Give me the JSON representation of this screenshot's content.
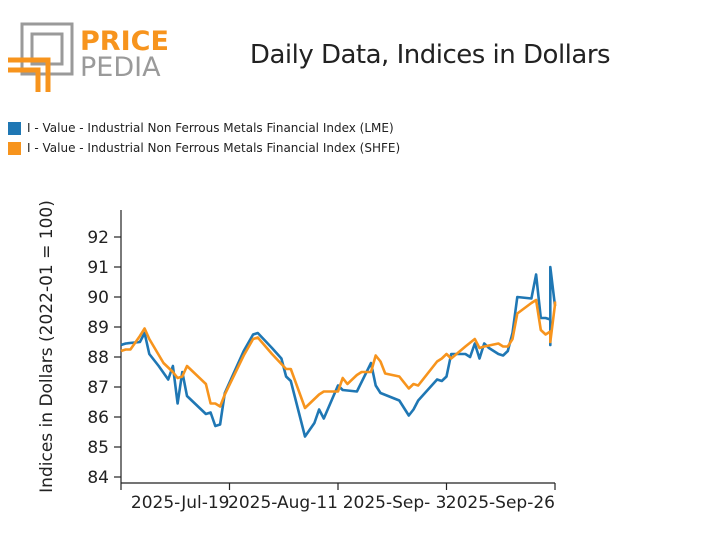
{
  "brand": {
    "price": "PRICE",
    "pedia": "PEDIA",
    "colors": {
      "orange": "#f7941d",
      "gray": "#9a9a9a"
    }
  },
  "chart_data": {
    "type": "line",
    "title": "Daily Data, Indices in Dollars",
    "xlabel": "",
    "ylabel": "Indices in Dollars (2022-01 = 100)",
    "ylim": [
      83.8,
      92.9
    ],
    "yticks": [
      84,
      85,
      86,
      87,
      88,
      89,
      90,
      91,
      92
    ],
    "xlim": [
      "2025-06-26",
      "2025-09-26"
    ],
    "xticks": [
      "2025-Jul-19",
      "2025-Aug-11",
      "2025-Sep- 3",
      "2025-Sep-26"
    ],
    "legend_placement": "top-left",
    "grid": false,
    "series": [
      {
        "name": "I - Value - Industrial Non Ferrous Metals Financial Index (LME)",
        "color": "#1f77b4",
        "points": [
          [
            "2025-06-26",
            88.4
          ],
          [
            "2025-06-27",
            88.45
          ],
          [
            "2025-06-30",
            88.5
          ],
          [
            "2025-07-01",
            88.8
          ],
          [
            "2025-07-02",
            88.1
          ],
          [
            "2025-07-04",
            87.7
          ],
          [
            "2025-07-06",
            87.25
          ],
          [
            "2025-07-07",
            87.7
          ],
          [
            "2025-07-08",
            86.45
          ],
          [
            "2025-07-09",
            87.5
          ],
          [
            "2025-07-10",
            86.7
          ],
          [
            "2025-07-14",
            86.1
          ],
          [
            "2025-07-15",
            86.15
          ],
          [
            "2025-07-16",
            85.7
          ],
          [
            "2025-07-17",
            85.75
          ],
          [
            "2025-07-18",
            86.8
          ],
          [
            "2025-07-22",
            88.2
          ],
          [
            "2025-07-24",
            88.75
          ],
          [
            "2025-07-25",
            88.8
          ],
          [
            "2025-07-28",
            88.3
          ],
          [
            "2025-07-30",
            87.95
          ],
          [
            "2025-07-31",
            87.35
          ],
          [
            "2025-08-01",
            87.2
          ],
          [
            "2025-08-04",
            85.35
          ],
          [
            "2025-08-06",
            85.8
          ],
          [
            "2025-08-07",
            86.25
          ],
          [
            "2025-08-08",
            85.95
          ],
          [
            "2025-08-11",
            87.05
          ],
          [
            "2025-08-12",
            86.9
          ],
          [
            "2025-08-15",
            86.85
          ],
          [
            "2025-08-18",
            87.8
          ],
          [
            "2025-08-19",
            87.05
          ],
          [
            "2025-08-20",
            86.8
          ],
          [
            "2025-08-24",
            86.55
          ],
          [
            "2025-08-26",
            86.05
          ],
          [
            "2025-08-27",
            86.25
          ],
          [
            "2025-08-28",
            86.55
          ],
          [
            "2025-09-01",
            87.25
          ],
          [
            "2025-09-02",
            87.2
          ],
          [
            "2025-09-03",
            87.35
          ],
          [
            "2025-09-04",
            88.1
          ],
          [
            "2025-09-07",
            88.1
          ],
          [
            "2025-09-08",
            88.0
          ],
          [
            "2025-09-09",
            88.45
          ],
          [
            "2025-09-10",
            87.95
          ],
          [
            "2025-09-11",
            88.45
          ],
          [
            "2025-09-12",
            88.3
          ],
          [
            "2025-09-14",
            88.1
          ],
          [
            "2025-09-15",
            88.05
          ],
          [
            "2025-09-16",
            88.2
          ],
          [
            "2025-09-17",
            88.8
          ],
          [
            "2025-09-18",
            90.0
          ],
          [
            "2025-09-21",
            89.95
          ],
          [
            "2025-09-22",
            90.75
          ],
          [
            "2025-09-23",
            89.3
          ],
          [
            "2025-09-24",
            89.3
          ],
          [
            "2025-09-25",
            89.25
          ],
          [
            "2025-09-25",
            88.4
          ],
          [
            "2025-09-25",
            91.0
          ],
          [
            "2025-09-26",
            89.7
          ]
        ]
      },
      {
        "name": "I - Value - Industrial Non Ferrous Metals Financial Index (SHFE)",
        "color": "#f7941d",
        "points": [
          [
            "2025-06-26",
            88.2
          ],
          [
            "2025-06-27",
            88.25
          ],
          [
            "2025-06-28",
            88.25
          ],
          [
            "2025-06-30",
            88.7
          ],
          [
            "2025-07-01",
            88.95
          ],
          [
            "2025-07-02",
            88.6
          ],
          [
            "2025-07-05",
            87.8
          ],
          [
            "2025-07-07",
            87.5
          ],
          [
            "2025-07-08",
            87.3
          ],
          [
            "2025-07-09",
            87.35
          ],
          [
            "2025-07-10",
            87.7
          ],
          [
            "2025-07-14",
            87.1
          ],
          [
            "2025-07-15",
            86.45
          ],
          [
            "2025-07-16",
            86.45
          ],
          [
            "2025-07-17",
            86.35
          ],
          [
            "2025-07-18",
            86.75
          ],
          [
            "2025-07-22",
            88.05
          ],
          [
            "2025-07-24",
            88.6
          ],
          [
            "2025-07-25",
            88.65
          ],
          [
            "2025-07-28",
            88.1
          ],
          [
            "2025-07-31",
            87.6
          ],
          [
            "2025-08-01",
            87.6
          ],
          [
            "2025-08-04",
            86.3
          ],
          [
            "2025-08-07",
            86.75
          ],
          [
            "2025-08-08",
            86.85
          ],
          [
            "2025-08-11",
            86.85
          ],
          [
            "2025-08-12",
            87.3
          ],
          [
            "2025-08-13",
            87.1
          ],
          [
            "2025-08-15",
            87.4
          ],
          [
            "2025-08-16",
            87.5
          ],
          [
            "2025-08-18",
            87.5
          ],
          [
            "2025-08-19",
            88.05
          ],
          [
            "2025-08-20",
            87.85
          ],
          [
            "2025-08-21",
            87.45
          ],
          [
            "2025-08-24",
            87.35
          ],
          [
            "2025-08-26",
            86.95
          ],
          [
            "2025-08-27",
            87.1
          ],
          [
            "2025-08-28",
            87.05
          ],
          [
            "2025-09-01",
            87.85
          ],
          [
            "2025-09-02",
            87.95
          ],
          [
            "2025-09-03",
            88.1
          ],
          [
            "2025-09-04",
            87.95
          ],
          [
            "2025-09-07",
            88.35
          ],
          [
            "2025-09-09",
            88.6
          ],
          [
            "2025-09-10",
            88.3
          ],
          [
            "2025-09-11",
            88.35
          ],
          [
            "2025-09-14",
            88.45
          ],
          [
            "2025-09-15",
            88.35
          ],
          [
            "2025-09-16",
            88.35
          ],
          [
            "2025-09-17",
            88.6
          ],
          [
            "2025-09-18",
            89.45
          ],
          [
            "2025-09-21",
            89.8
          ],
          [
            "2025-09-22",
            89.9
          ],
          [
            "2025-09-23",
            88.9
          ],
          [
            "2025-09-24",
            88.75
          ],
          [
            "2025-09-25",
            88.85
          ],
          [
            "2025-09-25",
            88.65
          ],
          [
            "2025-09-25",
            88.5
          ],
          [
            "2025-09-26",
            89.75
          ],
          [
            "2025-09-26",
            89.85
          ]
        ]
      }
    ]
  }
}
